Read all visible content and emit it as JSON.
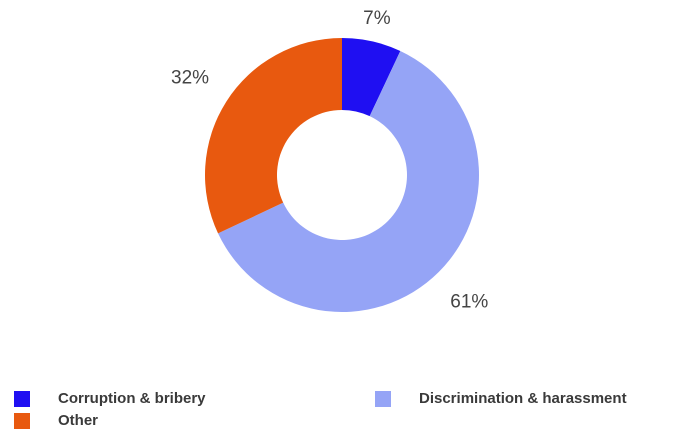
{
  "chart_data": {
    "type": "donut",
    "categories": [
      "Corruption & bribery",
      "Discrimination & harassment",
      "Other"
    ],
    "values": [
      7,
      61,
      32
    ],
    "value_labels": [
      "7%",
      "61%",
      "32%"
    ],
    "colors": [
      "#1f0ff2",
      "#95a4f6",
      "#e8590f"
    ]
  }
}
